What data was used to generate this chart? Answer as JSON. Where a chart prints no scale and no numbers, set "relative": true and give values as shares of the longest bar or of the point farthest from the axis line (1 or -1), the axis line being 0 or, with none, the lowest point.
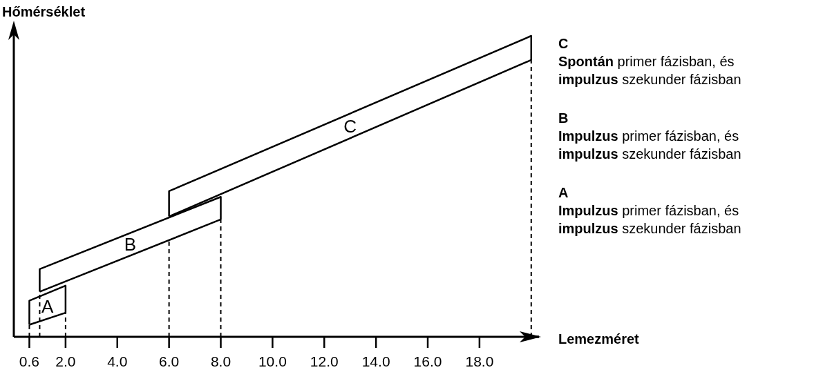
{
  "chart_data": {
    "type": "line",
    "relative": true,
    "xlabel": "Lemezméret",
    "ylabel": "Hőmérséklet",
    "xlim": [
      0,
      20.3
    ],
    "xticks": [
      {
        "value": 0.6,
        "label": "0.6"
      },
      {
        "value": 2,
        "label": "2.0"
      },
      {
        "value": 4,
        "label": "4.0"
      },
      {
        "value": 6,
        "label": "6.0"
      },
      {
        "value": 8,
        "label": "8.0"
      },
      {
        "value": 10,
        "label": "10.0"
      },
      {
        "value": 12,
        "label": "12.0"
      },
      {
        "value": 14,
        "label": "14.0"
      },
      {
        "value": 16,
        "label": "16.0"
      },
      {
        "value": 18,
        "label": "18.0"
      }
    ],
    "series": [
      {
        "name": "A",
        "color": "#000000",
        "x": [
          0.6,
          0.6,
          2.0,
          2.0
        ],
        "values": [
          0.04,
          0.12,
          0.17,
          0.08
        ]
      },
      {
        "color": "#000000",
        "x": [
          0.6,
          2.0
        ],
        "values": [
          0.04,
          0.08
        ]
      },
      {
        "name": "B",
        "color": "#000000",
        "x": [
          1.0,
          1.0,
          8.0,
          8.0
        ],
        "values": [
          0.15,
          0.225,
          0.465,
          0.39
        ]
      },
      {
        "color": "#000000",
        "x": [
          1.0,
          8.0
        ],
        "values": [
          0.15,
          0.39
        ]
      },
      {
        "name": "C",
        "color": "#000000",
        "x": [
          6.0,
          6.0,
          20.0,
          20.0
        ],
        "values": [
          0.4,
          0.484,
          1.0,
          0.92
        ]
      },
      {
        "color": "#000000",
        "x": [
          6.0,
          20.0
        ],
        "values": [
          0.4,
          0.92
        ]
      },
      {
        "color": "#000000",
        "line_style": "dashed",
        "x": [
          0.6,
          0.6
        ],
        "values": [
          0,
          0.04
        ]
      },
      {
        "color": "#000000",
        "line_style": "dashed",
        "x": [
          1.0,
          1.0
        ],
        "values": [
          0,
          0.15
        ]
      },
      {
        "color": "#000000",
        "line_style": "dashed",
        "x": [
          2.0,
          2.0
        ],
        "values": [
          0,
          0.08
        ]
      },
      {
        "color": "#000000",
        "line_style": "dashed",
        "x": [
          6.0,
          6.0
        ],
        "values": [
          0,
          0.32
        ]
      },
      {
        "color": "#000000",
        "line_style": "dashed",
        "x": [
          8.0,
          8.0
        ],
        "values": [
          0,
          0.39
        ]
      },
      {
        "color": "#000000",
        "line_style": "dashed",
        "x": [
          20.0,
          20.0
        ],
        "values": [
          0,
          0.92
        ]
      }
    ],
    "annotations": [
      "C",
      "Spontán primer fázisban, és",
      "impulzus szekunder fázisban",
      "B",
      "Impulzus primer fázisban, és",
      "impulzus szekunder fázisban",
      "A",
      "Impulzus primer fázisban, és",
      "impulzus szekunder fázisban"
    ],
    "tick_labels": "x"
  }
}
